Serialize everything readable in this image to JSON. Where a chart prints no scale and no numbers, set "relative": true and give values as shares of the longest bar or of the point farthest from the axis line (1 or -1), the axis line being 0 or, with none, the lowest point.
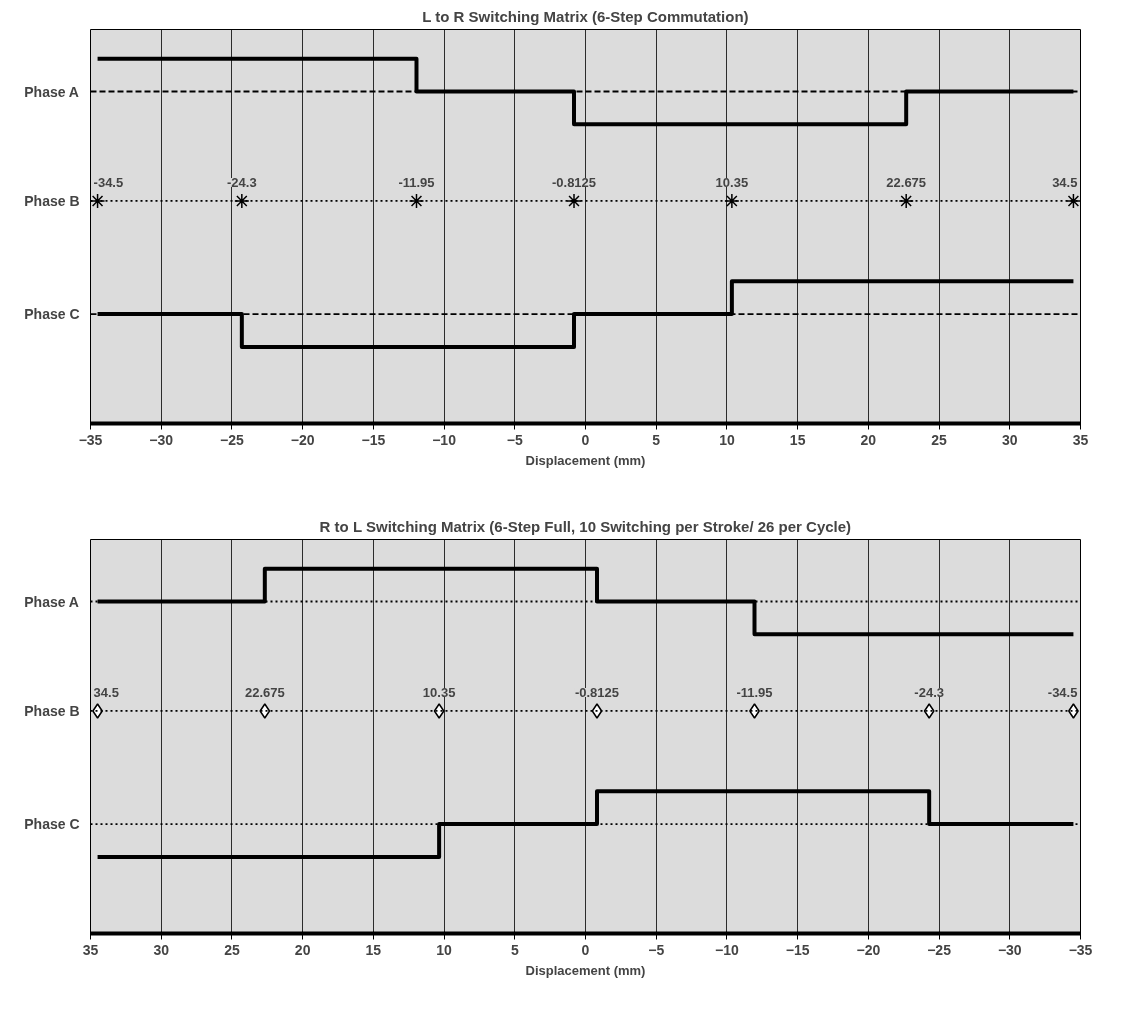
{
  "chart_data": [
    {
      "type": "step",
      "title": "L to R Switching Matrix (6-Step Commutation)",
      "xlabel": "Displacement (mm)",
      "relative": true,
      "xlim": [
        -35,
        35
      ],
      "xticks": [
        -35,
        -30,
        -25,
        -20,
        -15,
        -10,
        -5,
        0,
        5,
        10,
        15,
        20,
        25,
        30,
        35
      ],
      "grid": "x",
      "ref_lines": [
        {
          "axis": "y",
          "value": 0.91,
          "label": "Phase A",
          "color": "#000000",
          "line_style": "dashed"
        },
        {
          "axis": "y",
          "value": 0.61,
          "label": "Phase B",
          "color": "#000000",
          "line_style": "dotted"
        },
        {
          "axis": "y",
          "value": 0.3,
          "label": "Phase C",
          "color": "#000000",
          "line_style": "dashed"
        }
      ],
      "series": [
        {
          "color": "#000000",
          "x": [
            -34.5,
            -11.95,
            -0.8125,
            22.675,
            34.5
          ],
          "values": [
            1.0,
            0.91,
            0.82,
            0.91,
            0.91
          ]
        },
        {
          "type": "scatter",
          "color": "#000000",
          "marker": "cross",
          "x": [
            -34.5,
            -24.3,
            -11.95,
            -0.8125,
            10.35,
            22.675,
            34.5
          ],
          "values": [
            0.61,
            0.61,
            0.61,
            0.61,
            0.61,
            0.61,
            0.61
          ]
        },
        {
          "color": "#000000",
          "x": [
            -34.5,
            -24.3,
            -0.8125,
            10.35,
            34.5
          ],
          "values": [
            0.3,
            0.21,
            0.3,
            0.39,
            0.39
          ]
        }
      ],
      "annotations": [
        {
          "text": "-34.5",
          "x": -34.5,
          "y": 0.61
        },
        {
          "text": "-24.3",
          "x": -24.3,
          "y": 0.61
        },
        {
          "text": "-11.95",
          "x": -11.95,
          "y": 0.61
        },
        {
          "text": "-0.8125",
          "x": -0.8125,
          "y": 0.61
        },
        {
          "text": "10.35",
          "x": 10.35,
          "y": 0.61
        },
        {
          "text": "22.675",
          "x": 22.675,
          "y": 0.61
        },
        {
          "text": "34.5",
          "x": 34.5,
          "y": 0.61
        }
      ]
    },
    {
      "type": "step",
      "title": "R to L Switching Matrix (6-Step Full, 10 Switching per Stroke/ 26 per Cycle)",
      "xlabel": "Displacement (mm)",
      "relative": true,
      "xlim": [
        35,
        -35
      ],
      "xticks": [
        35,
        30,
        25,
        20,
        15,
        10,
        5,
        0,
        -5,
        -10,
        -15,
        -20,
        -25,
        -30,
        -35
      ],
      "grid": "x",
      "ref_lines": [
        {
          "axis": "y",
          "value": 0.91,
          "label": "Phase A",
          "color": "#000000",
          "line_style": "dotted"
        },
        {
          "axis": "y",
          "value": 0.61,
          "label": "Phase B",
          "color": "#000000",
          "line_style": "dotted"
        },
        {
          "axis": "y",
          "value": 0.3,
          "label": "Phase C",
          "color": "#000000",
          "line_style": "dotted"
        }
      ],
      "series": [
        {
          "color": "#000000",
          "x": [
            34.5,
            22.675,
            -0.8125,
            -11.95,
            -34.5
          ],
          "values": [
            0.91,
            1.0,
            0.91,
            0.82,
            0.82
          ]
        },
        {
          "type": "scatter",
          "color": "#000000",
          "marker": "diamond",
          "x": [
            34.5,
            22.675,
            10.35,
            -0.8125,
            -11.95,
            -24.3,
            -34.5
          ],
          "values": [
            0.61,
            0.61,
            0.61,
            0.61,
            0.61,
            0.61,
            0.61
          ]
        },
        {
          "color": "#000000",
          "x": [
            34.5,
            10.35,
            -0.8125,
            -24.3,
            -34.5
          ],
          "values": [
            0.21,
            0.3,
            0.39,
            0.3,
            0.3
          ]
        }
      ],
      "annotations": [
        {
          "text": "34.5",
          "x": 34.5,
          "y": 0.61
        },
        {
          "text": "22.675",
          "x": 22.675,
          "y": 0.61
        },
        {
          "text": "10.35",
          "x": 10.35,
          "y": 0.61
        },
        {
          "text": "-0.8125",
          "x": -0.8125,
          "y": 0.61
        },
        {
          "text": "-11.95",
          "x": -11.95,
          "y": 0.61
        },
        {
          "text": "-24.3",
          "x": -24.3,
          "y": 0.61
        },
        {
          "text": "-34.5",
          "x": -34.5,
          "y": 0.61
        }
      ]
    }
  ]
}
